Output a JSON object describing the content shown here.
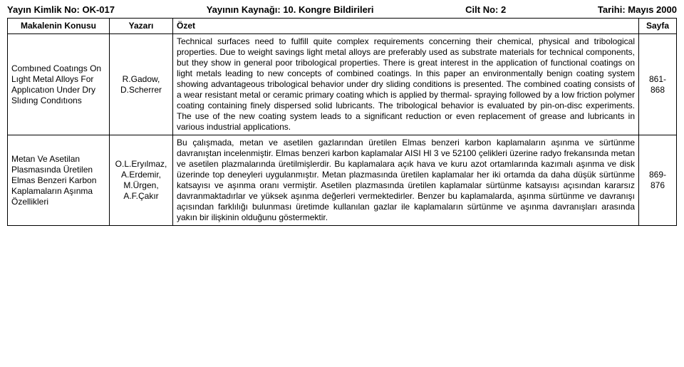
{
  "header": {
    "pubId": "Yayın Kimlik No: OK-017",
    "source": "Yayının Kaynağı: 10. Kongre Bildirileri",
    "volume": "Cilt No: 2",
    "date": "Tarihi: Mayıs 2000"
  },
  "columns": {
    "subject": "Makalenin Konusu",
    "author": "Yazarı",
    "abstract": "Özet",
    "page": "Sayfa"
  },
  "rows": [
    {
      "subject": "Combıned Coatıngs On Lıght Metal Alloys For Applıcatıon Under Dry Slıdıng Condıtıons",
      "author": "R.Gadow, D.Scherrer",
      "abstract": "Technical surfaces need to fulfill quite complex requirements concerning their chemical, physical and tribological properties. Due to weight savings light metal alloys are preferably used as substrate materials for technical components, but they show in general poor tribological properties. There is great interest in the application of functional coatings on light metals leading to new concepts of combined coatings. In this paper an environmentally benign coating system showing advantageous tribological behavior under dry sliding conditions is presented. The combined coating consists of a wear resistant metal or ceramic primary coating which is applied by thermal- spraying followed by a low friction polymer coating containing finely dispersed solid lubricants. The tribological behavior is evaluated by pin-on-disc experiments. The use of the new coating system leads to a significant reduction or even replacement of grease and lubricants in various industrial applications.",
      "page": "861-868"
    },
    {
      "subject": "Metan Ve Asetilan Plasmasında Üretilen Elmas Benzeri Karbon Kaplamaların Aşınma Özellikleri",
      "author": "O.L.Eryılmaz, A.Erdemir, M.Ürgen, A.F.Çakır",
      "abstract": "Bu çalışmada, metan ve asetilen gazlarından üretilen Elmas benzeri karbon kaplamaların aşınma ve sürtünme davranıştan incelenmiştir. Elmas benzeri karbon kaplamalar AISI Hl 3 ve 52100 çelikleri üzerine radyo frekansında metan ve asetilen plazmalarında üretilmişlerdir. Bu kaplamalara açık hava ve kuru azot ortamlarında kazımalı aşınma ve disk üzerinde top deneyleri uygulanmıştır. Metan plazmasında üretilen kaplamalar her iki ortamda da daha düşük sürtünme katsayısı ve aşınma oranı vermiştir. Asetilen plazmasında üretilen kaplamalar sürtünme katsayısı açısından kararsız davranmaktadırlar ve yüksek aşınma değerleri vermektedirler. Benzer bu kaplamalarda, aşınma sürtünme ve davranışı açısından farklılığı bulunması üretimde kullanılan gazlar ile kaplamaların sürtünme ve aşınma davranışları arasında yakın bir ilişkinin olduğunu göstermektir.",
      "page": "869-876"
    }
  ]
}
